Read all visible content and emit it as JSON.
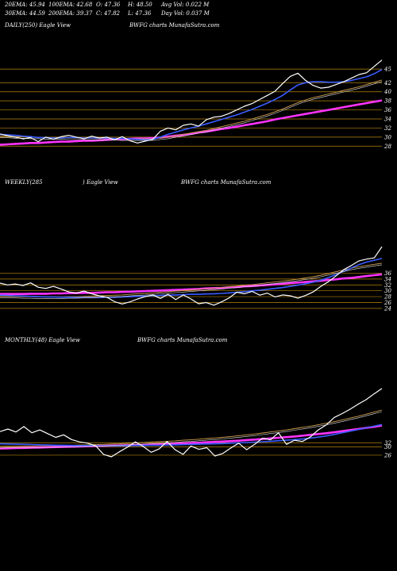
{
  "header": {
    "row1": [
      "20EMA: 45.94",
      "100EMA: 42.68",
      "O: 47.36",
      "H: 48.50",
      "Avg Vol: 0.022  M"
    ],
    "row2": [
      "30EMA: 44.59",
      "200EMA: 39.37",
      "C: 47.82",
      "L: 47.36",
      "Day Vol: 0.037  M"
    ]
  },
  "colors": {
    "background": "#000000",
    "gridline": "#b8860b",
    "price": "#ffffff",
    "ema_fast": "#3a5cff",
    "ema_slow": "#ff33ff",
    "ema_mid": "#d2a050"
  },
  "chart_data": [
    {
      "type": "line",
      "title_left": "DAILY(250) Eagle  View",
      "title_center": "BWFG charts MunafaSutra.com",
      "yticks": [
        45,
        42,
        40,
        38,
        36,
        34,
        32,
        30,
        28
      ],
      "ylim": [
        27,
        48
      ],
      "series": [
        {
          "role": "price",
          "values": [
            30.7,
            30.3,
            30.0,
            29.6,
            29.9,
            29.0,
            30.0,
            29.5,
            30.1,
            30.4,
            30.0,
            29.6,
            30.2,
            29.8,
            30.0,
            29.4,
            30.1,
            29.2,
            28.7,
            29.1,
            29.5,
            31.3,
            32.0,
            31.6,
            32.6,
            32.9,
            32.4,
            33.8,
            34.4,
            34.6,
            35.2,
            36.0,
            36.8,
            37.4,
            38.3,
            39.2,
            40.1,
            41.8,
            43.4,
            44.1,
            42.5,
            41.4,
            40.8,
            41.0,
            41.6,
            42.2,
            43.0,
            43.8,
            44.2,
            45.6,
            47.0
          ]
        },
        {
          "role": "ema_fast",
          "values": [
            30.6,
            30.5,
            30.4,
            30.2,
            30.1,
            29.9,
            29.9,
            29.8,
            29.8,
            29.9,
            29.9,
            29.8,
            29.8,
            29.8,
            29.8,
            29.7,
            29.7,
            29.6,
            29.5,
            29.4,
            29.5,
            30.0,
            30.6,
            31.1,
            31.6,
            32.0,
            32.4,
            32.9,
            33.4,
            33.9,
            34.4,
            34.9,
            35.5,
            36.1,
            36.8,
            37.5,
            38.3,
            39.2,
            40.4,
            41.5,
            42.0,
            42.2,
            42.2,
            42.1,
            42.1,
            42.2,
            42.5,
            42.9,
            43.3,
            44.0,
            44.9
          ]
        },
        {
          "role": "ema_mid",
          "values": [
            30.2,
            30.2,
            30.1,
            30.1,
            30.0,
            30.0,
            29.9,
            29.9,
            29.9,
            29.8,
            29.8,
            29.8,
            29.7,
            29.7,
            29.7,
            29.7,
            29.6,
            29.6,
            29.6,
            29.6,
            29.6,
            29.8,
            30.0,
            30.3,
            30.6,
            30.9,
            31.2,
            31.5,
            31.9,
            32.3,
            32.7,
            33.1,
            33.5,
            34.0,
            34.5,
            35.0,
            35.6,
            36.2,
            36.9,
            37.6,
            38.2,
            38.7,
            39.1,
            39.5,
            39.9,
            40.3,
            40.7,
            41.1,
            41.6,
            42.1,
            42.6
          ]
        },
        {
          "role": "ema_slow",
          "values": [
            28.3,
            28.4,
            28.5,
            28.6,
            28.7,
            28.7,
            28.8,
            28.9,
            29.0,
            29.0,
            29.1,
            29.2,
            29.2,
            29.3,
            29.4,
            29.5,
            29.5,
            29.6,
            29.7,
            29.7,
            29.8,
            29.9,
            30.1,
            30.3,
            30.5,
            30.7,
            31.0,
            31.2,
            31.5,
            31.8,
            32.0,
            32.3,
            32.6,
            32.9,
            33.2,
            33.5,
            33.9,
            34.2,
            34.5,
            34.8,
            35.1,
            35.4,
            35.7,
            36.0,
            36.3,
            36.6,
            36.9,
            37.2,
            37.5,
            37.8,
            38.1
          ]
        }
      ]
    },
    {
      "type": "line",
      "title_left": "WEEKLY(285",
      "title_mid": ") Eagle  View",
      "title_center": "BWFG charts MunafaSutra.com",
      "yticks": [
        36,
        34,
        32,
        30,
        28,
        26,
        24
      ],
      "ylim": [
        21,
        48
      ],
      "series": [
        {
          "role": "price",
          "values": [
            32.6,
            32.0,
            32.3,
            31.8,
            32.7,
            31.2,
            30.8,
            31.5,
            30.6,
            29.6,
            29.2,
            29.9,
            29.0,
            28.3,
            27.8,
            26.3,
            25.5,
            26.2,
            27.2,
            28.0,
            28.6,
            27.4,
            28.8,
            27.0,
            28.6,
            27.2,
            25.6,
            26.0,
            25.1,
            26.2,
            27.6,
            29.5,
            29.0,
            29.8,
            28.5,
            29.2,
            27.9,
            28.6,
            28.3,
            27.5,
            28.4,
            29.6,
            31.5,
            33.1,
            35.1,
            37.2,
            38.6,
            40.2,
            40.8,
            41.2,
            45.0
          ]
        },
        {
          "role": "ema_fast",
          "values": [
            28.5,
            28.4,
            28.3,
            28.2,
            28.1,
            28.0,
            27.9,
            27.9,
            27.8,
            27.8,
            27.7,
            27.7,
            27.7,
            27.7,
            27.8,
            27.8,
            27.9,
            28.0,
            28.1,
            28.2,
            28.3,
            28.4,
            28.5,
            28.6,
            28.7,
            28.8,
            28.8,
            28.9,
            29.0,
            29.1,
            29.3,
            29.5,
            29.7,
            30.0,
            30.2,
            30.5,
            30.8,
            31.1,
            31.5,
            31.9,
            32.4,
            32.9,
            33.6,
            34.5,
            35.5,
            36.6,
            37.8,
            38.9,
            39.8,
            40.4,
            41.0
          ]
        },
        {
          "role": "ema_mid",
          "values": [
            28.2,
            28.1,
            28.1,
            28.0,
            28.0,
            27.9,
            27.9,
            27.9,
            27.9,
            28.0,
            28.0,
            28.1,
            28.2,
            28.3,
            28.4,
            28.5,
            28.6,
            28.8,
            29.0,
            29.1,
            29.3,
            29.5,
            29.7,
            29.9,
            30.1,
            30.3,
            30.5,
            30.7,
            30.9,
            31.1,
            31.4,
            31.6,
            31.9,
            32.1,
            32.4,
            32.7,
            33.0,
            33.3,
            33.6,
            34.0,
            34.4,
            34.8,
            35.3,
            35.9,
            36.5,
            37.1,
            37.7,
            38.2,
            38.6,
            39.0,
            39.4
          ]
        },
        {
          "role": "ema_slow",
          "values": [
            28.9,
            28.9,
            28.9,
            28.9,
            29.0,
            29.0,
            29.0,
            29.1,
            29.1,
            29.2,
            29.2,
            29.3,
            29.3,
            29.4,
            29.5,
            29.5,
            29.6,
            29.7,
            29.8,
            29.9,
            30.0,
            30.1,
            30.2,
            30.3,
            30.4,
            30.5,
            30.6,
            30.8,
            30.9,
            31.0,
            31.2,
            31.3,
            31.5,
            31.6,
            31.8,
            32.0,
            32.2,
            32.4,
            32.6,
            32.8,
            33.0,
            33.2,
            33.4,
            33.7,
            33.9,
            34.2,
            34.4,
            34.7,
            35.0,
            35.3,
            35.6
          ]
        }
      ]
    },
    {
      "type": "line",
      "title_left": "MONTHLY(48) Eagle  View",
      "title_center": "BWFG charts MunafaSutra.com",
      "yticks": [
        32,
        30,
        26
      ],
      "ylim": [
        16,
        62
      ],
      "series": [
        {
          "role": "price",
          "values": [
            37.4,
            38.6,
            37.2,
            39.8,
            36.8,
            38.2,
            36.4,
            34.6,
            35.8,
            33.5,
            32.4,
            31.8,
            30.6,
            26.4,
            25.2,
            27.6,
            29.8,
            32.4,
            30.2,
            27.4,
            29.0,
            32.6,
            28.6,
            26.4,
            30.4,
            28.8,
            29.6,
            25.6,
            26.8,
            29.4,
            31.8,
            28.6,
            31.2,
            34.2,
            33.4,
            36.8,
            31.2,
            33.2,
            32.6,
            34.8,
            38.2,
            40.6,
            44.2,
            46.1,
            48.2,
            50.6,
            52.8,
            55.6,
            58.2
          ]
        },
        {
          "role": "ema_fast",
          "values": [
            31.5,
            31.4,
            31.3,
            31.2,
            31.1,
            31.0,
            30.9,
            30.8,
            30.8,
            30.7,
            30.6,
            30.6,
            30.5,
            30.5,
            30.5,
            30.5,
            30.6,
            30.6,
            30.7,
            30.8,
            30.8,
            30.9,
            31.0,
            31.1,
            31.2,
            31.3,
            31.4,
            31.5,
            31.6,
            31.8,
            31.9,
            32.1,
            32.3,
            32.5,
            32.7,
            33.0,
            33.2,
            33.5,
            33.8,
            34.2,
            34.7,
            35.3,
            36.0,
            36.8,
            37.6,
            38.4,
            39.2,
            40.0,
            40.8
          ]
        },
        {
          "role": "ema_mid",
          "values": [
            30.2,
            30.3,
            30.3,
            30.4,
            30.4,
            30.5,
            30.6,
            30.6,
            30.7,
            30.8,
            30.9,
            31.0,
            31.1,
            31.2,
            31.4,
            31.5,
            31.7,
            31.9,
            32.1,
            32.3,
            32.5,
            32.7,
            32.9,
            33.2,
            33.4,
            33.7,
            34.0,
            34.3,
            34.6,
            35.0,
            35.4,
            35.8,
            36.2,
            36.7,
            37.2,
            37.7,
            38.2,
            38.8,
            39.4,
            40.0,
            40.7,
            41.4,
            42.2,
            43.0,
            43.9,
            44.8,
            45.8,
            46.8,
            47.8
          ]
        },
        {
          "role": "ema_slow",
          "values": [
            29.2,
            29.3,
            29.4,
            29.5,
            29.6,
            29.7,
            29.8,
            29.9,
            30.0,
            30.1,
            30.2,
            30.3,
            30.4,
            30.5,
            30.6,
            30.7,
            30.8,
            30.9,
            31.0,
            31.2,
            31.3,
            31.4,
            31.6,
            31.7,
            31.9,
            32.0,
            32.2,
            32.4,
            32.6,
            32.8,
            33.0,
            33.3,
            33.5,
            33.8,
            34.1,
            34.4,
            34.7,
            35.0,
            35.4,
            35.8,
            36.2,
            36.6,
            37.1,
            37.6,
            38.1,
            38.6,
            39.2,
            39.7,
            40.3
          ]
        }
      ]
    }
  ]
}
